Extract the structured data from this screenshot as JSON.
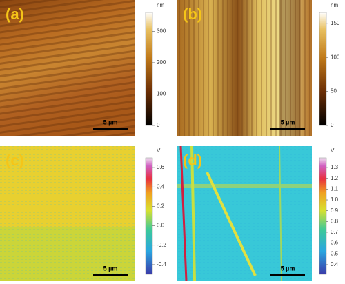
{
  "panels": [
    {
      "label": "(a)",
      "unit": "nm",
      "scale_bar": "5 µm",
      "colorbar": {
        "lim": [
          0,
          360
        ],
        "ticks": [
          0,
          100,
          200,
          300
        ]
      }
    },
    {
      "label": "(b)",
      "unit": "nm",
      "scale_bar": "5 µm",
      "colorbar": {
        "lim": [
          0,
          166
        ],
        "ticks": [
          0,
          50,
          100,
          150
        ]
      }
    },
    {
      "label": "(c)",
      "unit": "V",
      "scale_bar": "5 µm",
      "colorbar": {
        "lim": [
          -0.5,
          0.7
        ],
        "ticks": [
          -0.4,
          -0.2,
          {
            "value": 0,
            "label": "0.0"
          },
          0.2,
          0.4,
          0.6
        ]
      }
    },
    {
      "label": "(d)",
      "unit": "V",
      "scale_bar": "5 µm",
      "colorbar": {
        "lim": [
          0.31,
          1.39
        ],
        "ticks": [
          0.4,
          0.5,
          0.6,
          0.7,
          0.8,
          0.9,
          {
            "value": 1,
            "label": "1.0"
          },
          1.1,
          1.2,
          1.3
        ]
      }
    }
  ]
}
